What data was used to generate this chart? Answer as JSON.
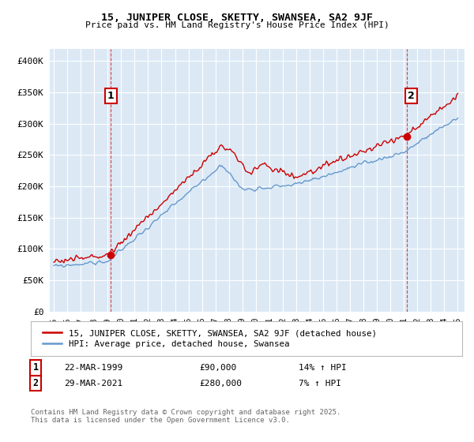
{
  "title": "15, JUNIPER CLOSE, SKETTY, SWANSEA, SA2 9JF",
  "subtitle": "Price paid vs. HM Land Registry's House Price Index (HPI)",
  "background_color": "#ffffff",
  "plot_bg_color": "#dce9f5",
  "grid_color": "#ffffff",
  "sale1_date": "22-MAR-1999",
  "sale1_price": 90000,
  "sale1_pct": "14%",
  "sale2_date": "29-MAR-2021",
  "sale2_price": 280000,
  "sale2_pct": "7%",
  "legend_label1": "15, JUNIPER CLOSE, SKETTY, SWANSEA, SA2 9JF (detached house)",
  "legend_label2": "HPI: Average price, detached house, Swansea",
  "footer": "Contains HM Land Registry data © Crown copyright and database right 2025.\nThis data is licensed under the Open Government Licence v3.0.",
  "red_color": "#cc0000",
  "blue_color": "#6699cc",
  "ylim_min": 0,
  "ylim_max": 420000,
  "x_start_year": 1995,
  "x_end_year": 2025,
  "sale1_year_f": 1999.22,
  "sale2_year_f": 2021.22
}
